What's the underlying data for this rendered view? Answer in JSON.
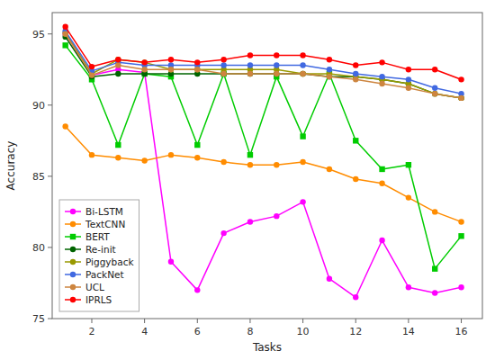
{
  "chart_data": {
    "type": "line",
    "xlabel": "Tasks",
    "ylabel": "Accuracy",
    "x": [
      1,
      2,
      3,
      4,
      5,
      6,
      7,
      8,
      9,
      10,
      11,
      12,
      13,
      14,
      15,
      16
    ],
    "xlim": [
      0.5,
      16.8
    ],
    "ylim": [
      75,
      96.5
    ],
    "xticks": [
      2,
      4,
      6,
      8,
      10,
      12,
      14,
      16
    ],
    "yticks": [
      75,
      80,
      85,
      90,
      95
    ],
    "grid": false,
    "legend": "lower left",
    "series": [
      {
        "name": "Bi-LSTM",
        "color": "#ff00ff",
        "marker": "circle",
        "values": [
          95.0,
          92.1,
          92.5,
          92.3,
          79.0,
          77.0,
          81.0,
          81.8,
          82.2,
          83.2,
          77.8,
          76.5,
          80.5,
          77.2,
          76.8,
          77.2
        ]
      },
      {
        "name": "TextCNN",
        "color": "#ff8c00",
        "marker": "circle",
        "values": [
          88.5,
          86.5,
          86.3,
          86.1,
          86.5,
          86.3,
          86.0,
          85.8,
          85.8,
          86.0,
          85.5,
          84.8,
          84.5,
          83.5,
          82.5,
          81.8
        ]
      },
      {
        "name": "BERT",
        "color": "#00cc00",
        "marker": "square",
        "values": [
          94.2,
          91.8,
          87.2,
          92.2,
          92.0,
          87.2,
          92.2,
          86.5,
          92.0,
          87.8,
          92.2,
          87.5,
          85.5,
          85.8,
          78.5,
          80.8
        ]
      },
      {
        "name": "Re-init",
        "color": "#006400",
        "marker": "circle",
        "values": [
          94.8,
          92.0,
          92.2,
          92.2,
          92.2,
          92.2,
          92.2,
          92.2,
          92.2,
          92.2,
          92.0,
          92.0,
          91.8,
          91.5,
          90.8,
          90.5
        ]
      },
      {
        "name": "Piggyback",
        "color": "#999900",
        "marker": "circle",
        "values": [
          95.1,
          92.2,
          93.2,
          93.0,
          92.5,
          92.5,
          92.5,
          92.5,
          92.5,
          92.2,
          92.2,
          92.0,
          91.8,
          91.5,
          90.8,
          90.5
        ]
      },
      {
        "name": "PackNet",
        "color": "#4169e1",
        "marker": "circle",
        "values": [
          95.2,
          92.4,
          93.0,
          92.8,
          92.8,
          92.8,
          92.8,
          92.8,
          92.8,
          92.8,
          92.5,
          92.2,
          92.0,
          91.8,
          91.2,
          90.8
        ]
      },
      {
        "name": "UCL",
        "color": "#cd853f",
        "marker": "circle",
        "values": [
          95.0,
          92.1,
          92.8,
          92.5,
          92.5,
          92.5,
          92.2,
          92.2,
          92.2,
          92.2,
          92.0,
          91.8,
          91.5,
          91.2,
          90.8,
          90.5
        ]
      },
      {
        "name": "IPRLS",
        "color": "#ff0000",
        "marker": "circle",
        "values": [
          95.5,
          92.7,
          93.2,
          93.0,
          93.2,
          93.0,
          93.2,
          93.5,
          93.5,
          93.5,
          93.2,
          92.8,
          93.0,
          92.5,
          92.5,
          91.8
        ]
      }
    ]
  }
}
